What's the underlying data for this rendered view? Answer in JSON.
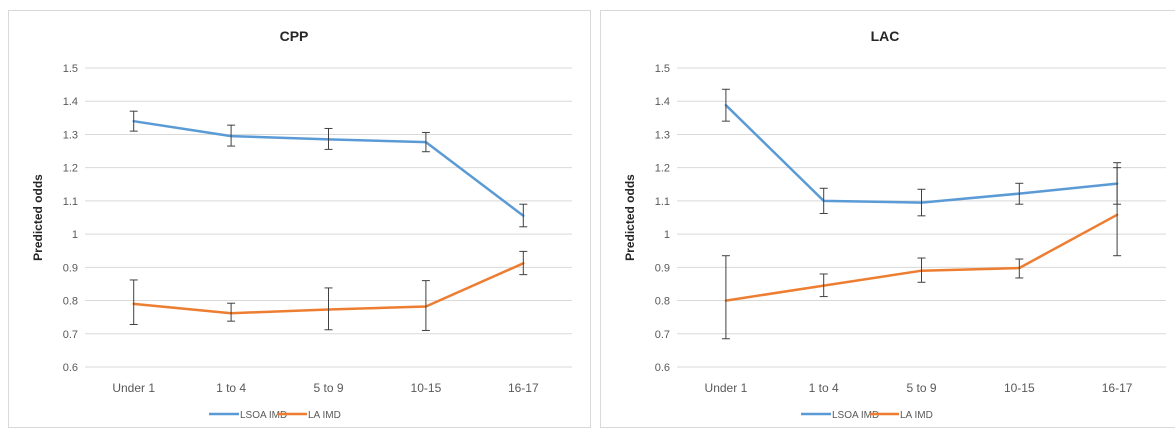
{
  "chart_data": [
    {
      "type": "line",
      "title": "CPP",
      "ylabel": "Predicted odds",
      "xlabel": "",
      "categories": [
        "Under 1",
        "1 to 4",
        "5 to 9",
        "10-15",
        "16-17"
      ],
      "ylim": [
        0.6,
        1.5
      ],
      "yticks": [
        "0.6",
        "0.7",
        "0.8",
        "0.9",
        "1",
        "1.1",
        "1.2",
        "1.3",
        "1.4",
        "1.5"
      ],
      "grid": true,
      "legend_position": "bottom",
      "series": [
        {
          "name": "LSOA IMD",
          "color": "#5b9bd5",
          "values": [
            1.34,
            1.295,
            1.285,
            1.277,
            1.055
          ],
          "err_low": [
            1.31,
            1.265,
            1.255,
            1.248,
            1.022
          ],
          "err_high": [
            1.37,
            1.328,
            1.318,
            1.306,
            1.09
          ]
        },
        {
          "name": "LA IMD",
          "color": "#ed7d31",
          "values": [
            0.79,
            0.762,
            0.773,
            0.782,
            0.912
          ],
          "err_low": [
            0.728,
            0.738,
            0.712,
            0.71,
            0.878
          ],
          "err_high": [
            0.862,
            0.792,
            0.838,
            0.86,
            0.948
          ]
        }
      ]
    },
    {
      "type": "line",
      "title": "LAC",
      "ylabel": "Predicted odds",
      "xlabel": "",
      "categories": [
        "Under 1",
        "1 to 4",
        "5 to 9",
        "10-15",
        "16-17"
      ],
      "ylim": [
        0.6,
        1.5
      ],
      "yticks": [
        "0.6",
        "0.7",
        "0.8",
        "0.9",
        "1",
        "1.1",
        "1.2",
        "1.3",
        "1.4",
        "1.5"
      ],
      "grid": true,
      "legend_position": "bottom",
      "series": [
        {
          "name": "LSOA IMD",
          "color": "#5b9bd5",
          "values": [
            1.388,
            1.1,
            1.095,
            1.122,
            1.152
          ],
          "err_low": [
            1.34,
            1.062,
            1.055,
            1.09,
            1.09
          ],
          "err_high": [
            1.436,
            1.138,
            1.135,
            1.153,
            1.215
          ]
        },
        {
          "name": "LA IMD",
          "color": "#ed7d31",
          "values": [
            0.8,
            0.845,
            0.89,
            0.898,
            1.058
          ],
          "err_low": [
            0.685,
            0.812,
            0.855,
            0.868,
            0.935
          ],
          "err_high": [
            0.935,
            0.88,
            0.928,
            0.925,
            1.2
          ]
        }
      ]
    }
  ]
}
